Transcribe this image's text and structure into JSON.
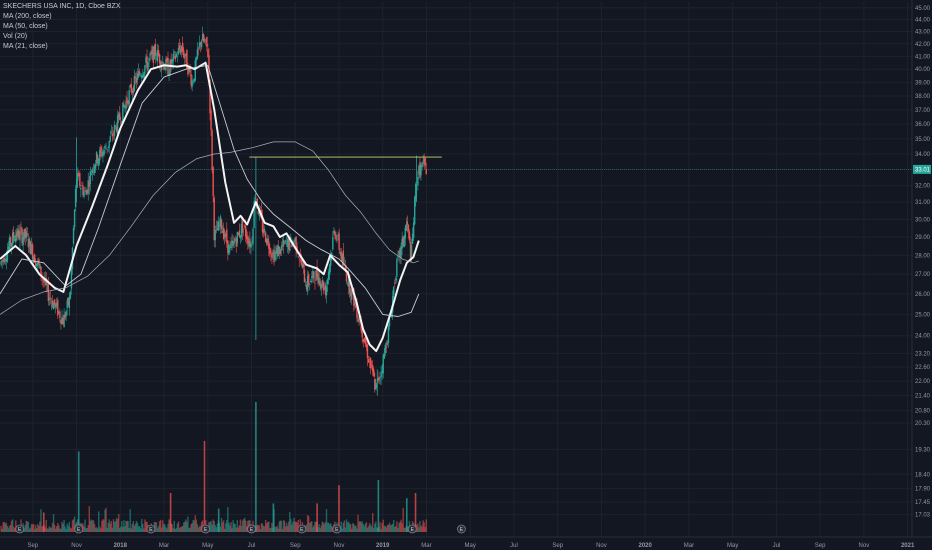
{
  "header": {
    "symbol": "SKECHERS USA INC, 1D, Cboe BZX",
    "studies": [
      "MA (200, close)",
      "MA (50, close)",
      "Vol (20)",
      "MA (21, close)"
    ]
  },
  "colors": {
    "background": "#131722",
    "grid": "#1e222d",
    "up": "#26a69a",
    "down": "#ef5350",
    "ma21": "#ffffff",
    "ma50": "#d1d4dc",
    "ma200": "#b2b5be",
    "resistance": "#c5d86d",
    "last_price": "#26a69a"
  },
  "chart_data": {
    "type": "candlestick",
    "title": "SKECHERS USA INC, 1D, Cboe BZX",
    "y_scale": "log",
    "ylim": [
      16.6,
      45.5
    ],
    "price_ticks": [
      "45.00",
      "44.00",
      "43.00",
      "42.00",
      "41.00",
      "40.00",
      "39.00",
      "38.00",
      "37.00",
      "36.00",
      "35.00",
      "34.00",
      "33.00",
      "32.00",
      "31.00",
      "30.00",
      "29.00",
      "28.00",
      "27.00",
      "26.00",
      "25.00",
      "24.00",
      "23.20",
      "22.60",
      "22.00",
      "21.40",
      "20.80",
      "20.30",
      "19.30",
      "18.40",
      "17.90",
      "17.45",
      "17.03"
    ],
    "time_labels": [
      "Sep",
      "Nov",
      "2018",
      "Mar",
      "May",
      "Jul",
      "Sep",
      "Nov",
      "2019",
      "Mar",
      "May",
      "Jul",
      "Sep",
      "Nov",
      "2020",
      "Mar",
      "May",
      "Jul",
      "Sep",
      "Nov",
      "2021"
    ],
    "x_month_range": [
      -5.5,
      36.2
    ],
    "last_price": "33.01",
    "resistance_level": 33.8,
    "resistance_range": [
      5.9,
      14.7
    ],
    "price_path": [
      {
        "m": -5.5,
        "p": 27.5
      },
      {
        "m": -4.8,
        "p": 29.2
      },
      {
        "m": -4.3,
        "p": 29.0
      },
      {
        "m": -3.7,
        "p": 27.3
      },
      {
        "m": -3.3,
        "p": 26.0
      },
      {
        "m": -2.6,
        "p": 24.7
      },
      {
        "m": -2.3,
        "p": 25.8
      },
      {
        "m": -2.0,
        "p": 32.5
      },
      {
        "m": -1.6,
        "p": 31.5
      },
      {
        "m": -1.2,
        "p": 33.5
      },
      {
        "m": -0.6,
        "p": 34.5
      },
      {
        "m": 0.0,
        "p": 36.5
      },
      {
        "m": 0.5,
        "p": 38.5
      },
      {
        "m": 1.0,
        "p": 40.0
      },
      {
        "m": 1.6,
        "p": 41.3
      },
      {
        "m": 2.2,
        "p": 40.0
      },
      {
        "m": 2.8,
        "p": 41.8
      },
      {
        "m": 3.3,
        "p": 39.0
      },
      {
        "m": 3.7,
        "p": 42.5
      },
      {
        "m": 4.0,
        "p": 41.5
      },
      {
        "m": 4.3,
        "p": 29.0
      },
      {
        "m": 4.6,
        "p": 29.8
      },
      {
        "m": 5.0,
        "p": 28.2
      },
      {
        "m": 5.6,
        "p": 29.6
      },
      {
        "m": 6.0,
        "p": 28.5
      },
      {
        "m": 6.15,
        "p": 31.5
      },
      {
        "m": 6.5,
        "p": 29.5
      },
      {
        "m": 7.0,
        "p": 28.0
      },
      {
        "m": 7.5,
        "p": 28.5
      },
      {
        "m": 8.0,
        "p": 28.8
      },
      {
        "m": 8.5,
        "p": 26.5
      },
      {
        "m": 9.0,
        "p": 27.0
      },
      {
        "m": 9.4,
        "p": 26.2
      },
      {
        "m": 9.8,
        "p": 29.5
      },
      {
        "m": 10.2,
        "p": 27.5
      },
      {
        "m": 10.6,
        "p": 26.0
      },
      {
        "m": 11.0,
        "p": 24.5
      },
      {
        "m": 11.4,
        "p": 22.8
      },
      {
        "m": 11.7,
        "p": 21.6
      },
      {
        "m": 12.0,
        "p": 22.8
      },
      {
        "m": 12.3,
        "p": 24.5
      },
      {
        "m": 12.6,
        "p": 27.2
      },
      {
        "m": 12.9,
        "p": 28.6
      },
      {
        "m": 13.1,
        "p": 29.8
      },
      {
        "m": 13.3,
        "p": 27.8
      },
      {
        "m": 13.55,
        "p": 32.6
      },
      {
        "m": 13.8,
        "p": 33.2
      },
      {
        "m": 14.0,
        "p": 33.0
      }
    ],
    "series": [
      {
        "name": "MA (21, close)",
        "points": [
          {
            "m": -5.5,
            "p": 27.8
          },
          {
            "m": -4.8,
            "p": 28.5
          },
          {
            "m": -4.3,
            "p": 28.0
          },
          {
            "m": -3.7,
            "p": 27.0
          },
          {
            "m": -3.0,
            "p": 26.3
          },
          {
            "m": -2.6,
            "p": 26.1
          },
          {
            "m": -2.0,
            "p": 28.5
          },
          {
            "m": -1.3,
            "p": 30.7
          },
          {
            "m": -0.6,
            "p": 33.2
          },
          {
            "m": 0.0,
            "p": 35.7
          },
          {
            "m": 0.8,
            "p": 38.4
          },
          {
            "m": 1.4,
            "p": 40.0
          },
          {
            "m": 2.0,
            "p": 40.3
          },
          {
            "m": 2.6,
            "p": 40.2
          },
          {
            "m": 3.0,
            "p": 40.3
          },
          {
            "m": 3.4,
            "p": 40.0
          },
          {
            "m": 3.9,
            "p": 40.5
          },
          {
            "m": 4.3,
            "p": 37.0
          },
          {
            "m": 4.8,
            "p": 32.2
          },
          {
            "m": 5.2,
            "p": 29.8
          },
          {
            "m": 5.5,
            "p": 30.2
          },
          {
            "m": 5.8,
            "p": 29.7
          },
          {
            "m": 6.2,
            "p": 31.0
          },
          {
            "m": 6.6,
            "p": 29.8
          },
          {
            "m": 7.0,
            "p": 29.6
          },
          {
            "m": 7.3,
            "p": 29.0
          },
          {
            "m": 7.6,
            "p": 29.2
          },
          {
            "m": 8.0,
            "p": 28.4
          },
          {
            "m": 8.5,
            "p": 27.5
          },
          {
            "m": 9.0,
            "p": 27.3
          },
          {
            "m": 9.3,
            "p": 27.0
          },
          {
            "m": 9.6,
            "p": 28.0
          },
          {
            "m": 10.0,
            "p": 27.5
          },
          {
            "m": 10.4,
            "p": 27.1
          },
          {
            "m": 10.8,
            "p": 25.6
          },
          {
            "m": 11.1,
            "p": 24.3
          },
          {
            "m": 11.4,
            "p": 23.6
          },
          {
            "m": 11.7,
            "p": 23.3
          },
          {
            "m": 12.0,
            "p": 23.9
          },
          {
            "m": 12.4,
            "p": 25.2
          },
          {
            "m": 12.8,
            "p": 26.7
          },
          {
            "m": 13.1,
            "p": 27.6
          },
          {
            "m": 13.4,
            "p": 27.9
          },
          {
            "m": 13.65,
            "p": 28.8
          }
        ]
      },
      {
        "name": "MA (50, close)",
        "points": [
          {
            "m": -5.5,
            "p": 26.0
          },
          {
            "m": -4.5,
            "p": 27.8
          },
          {
            "m": -3.5,
            "p": 27.6
          },
          {
            "m": -2.5,
            "p": 26.4
          },
          {
            "m": -1.8,
            "p": 27.0
          },
          {
            "m": -1.0,
            "p": 29.5
          },
          {
            "m": 0.0,
            "p": 33.3
          },
          {
            "m": 1.0,
            "p": 37.5
          },
          {
            "m": 2.0,
            "p": 39.4
          },
          {
            "m": 3.0,
            "p": 40.0
          },
          {
            "m": 4.0,
            "p": 40.3
          },
          {
            "m": 4.6,
            "p": 37.2
          },
          {
            "m": 5.2,
            "p": 34.3
          },
          {
            "m": 5.8,
            "p": 32.4
          },
          {
            "m": 6.5,
            "p": 31.0
          },
          {
            "m": 7.0,
            "p": 30.3
          },
          {
            "m": 7.8,
            "p": 29.5
          },
          {
            "m": 8.5,
            "p": 28.8
          },
          {
            "m": 9.2,
            "p": 28.3
          },
          {
            "m": 10.0,
            "p": 27.8
          },
          {
            "m": 10.5,
            "p": 27.2
          },
          {
            "m": 11.2,
            "p": 26.3
          },
          {
            "m": 12.0,
            "p": 25.0
          },
          {
            "m": 12.7,
            "p": 24.9
          },
          {
            "m": 13.3,
            "p": 25.1
          },
          {
            "m": 13.65,
            "p": 26.0
          }
        ]
      },
      {
        "name": "MA (200, close)",
        "points": [
          {
            "m": -5.5,
            "p": 25.0
          },
          {
            "m": -4.5,
            "p": 25.7
          },
          {
            "m": -3.5,
            "p": 26.1
          },
          {
            "m": -2.5,
            "p": 26.3
          },
          {
            "m": -1.5,
            "p": 26.9
          },
          {
            "m": -0.5,
            "p": 28.0
          },
          {
            "m": 0.5,
            "p": 29.6
          },
          {
            "m": 1.5,
            "p": 31.4
          },
          {
            "m": 2.5,
            "p": 32.8
          },
          {
            "m": 3.5,
            "p": 33.7
          },
          {
            "m": 4.3,
            "p": 34.0
          },
          {
            "m": 5.0,
            "p": 34.1
          },
          {
            "m": 6.0,
            "p": 34.4
          },
          {
            "m": 7.0,
            "p": 34.8
          },
          {
            "m": 8.0,
            "p": 34.8
          },
          {
            "m": 8.8,
            "p": 34.2
          },
          {
            "m": 9.5,
            "p": 33.0
          },
          {
            "m": 10.3,
            "p": 31.4
          },
          {
            "m": 11.0,
            "p": 30.4
          },
          {
            "m": 11.7,
            "p": 29.2
          },
          {
            "m": 12.3,
            "p": 28.3
          },
          {
            "m": 12.9,
            "p": 27.8
          },
          {
            "m": 13.4,
            "p": 27.6
          },
          {
            "m": 13.65,
            "p": 27.7
          }
        ]
      }
    ],
    "volume_spikes": [
      {
        "m": 6.2,
        "v": 1.0,
        "up": true
      },
      {
        "m": 3.85,
        "v": 0.7,
        "up": false
      },
      {
        "m": -1.9,
        "v": 0.62,
        "up": true
      },
      {
        "m": 11.8,
        "v": 0.4,
        "up": true
      },
      {
        "m": 10.0,
        "v": 0.36,
        "up": false
      },
      {
        "m": 2.3,
        "v": 0.3,
        "up": false
      },
      {
        "m": 13.1,
        "v": 0.26,
        "up": true
      },
      {
        "m": 13.5,
        "v": 0.3,
        "up": false
      },
      {
        "m": 7.0,
        "v": 0.22,
        "up": true
      },
      {
        "m": 9.0,
        "v": 0.22,
        "up": false
      },
      {
        "m": 4.5,
        "v": 0.18,
        "up": true
      },
      {
        "m": -3.5,
        "v": 0.15,
        "up": false
      }
    ],
    "events": [
      {
        "m": -4.6,
        "label": "E"
      },
      {
        "m": -1.9,
        "label": "E"
      },
      {
        "m": 1.4,
        "label": "E"
      },
      {
        "m": 3.9,
        "label": "E"
      },
      {
        "m": 6.0,
        "label": "E"
      },
      {
        "m": 8.3,
        "label": "E"
      },
      {
        "m": 9.9,
        "label": "E"
      },
      {
        "m": 13.35,
        "label": "E"
      },
      {
        "m": 15.6,
        "label": "E"
      }
    ]
  }
}
